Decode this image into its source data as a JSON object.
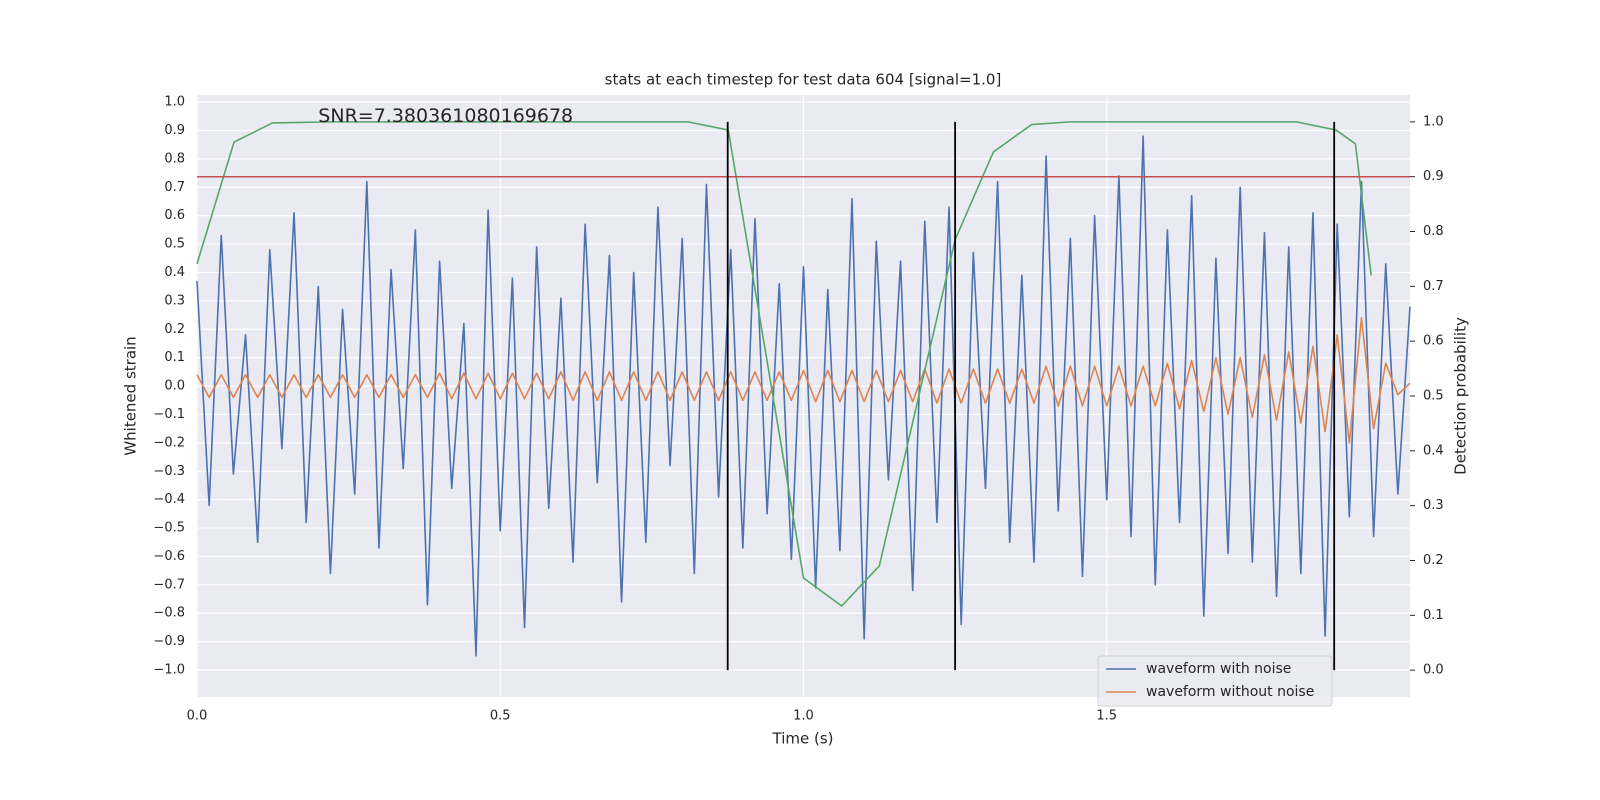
{
  "chart_data": {
    "type": "line",
    "title": "stats at each timestep for test data 604 [signal=1.0]",
    "xlabel": "Time (s)",
    "ylabel": "Whitened strain",
    "y2label": "Detection probability",
    "annotation": {
      "text": "SNR=7.380361080169678",
      "x": 0.2,
      "y": 0.95
    },
    "xlim": [
      0,
      2.0
    ],
    "ylim": [
      -1.095,
      1.025
    ],
    "y2lim": [
      -0.049,
      1.049
    ],
    "xticks": [
      {
        "value": 0,
        "label": "0.0"
      },
      0.5,
      {
        "value": 1,
        "label": "1.0"
      },
      1.5
    ],
    "yticks": [
      {
        "value": -1,
        "label": "−1.0"
      },
      {
        "value": -0.9,
        "label": "−0.9"
      },
      {
        "value": -0.8,
        "label": "−0.8"
      },
      {
        "value": -0.7,
        "label": "−0.7"
      },
      {
        "value": -0.6,
        "label": "−0.6"
      },
      {
        "value": -0.5,
        "label": "−0.5"
      },
      {
        "value": -0.4,
        "label": "−0.4"
      },
      {
        "value": -0.3,
        "label": "−0.3"
      },
      {
        "value": -0.2,
        "label": "−0.2"
      },
      {
        "value": -0.1,
        "label": "−0.1"
      },
      {
        "value": 0,
        "label": "0.0"
      },
      0.1,
      0.2,
      0.3,
      0.4,
      0.5,
      0.6,
      0.7,
      0.8,
      0.9,
      {
        "value": 1,
        "label": "1.0"
      }
    ],
    "y2ticks": [
      {
        "value": 0,
        "label": "0.0"
      },
      0.1,
      0.2,
      0.3,
      0.4,
      0.5,
      0.6,
      0.7,
      0.8,
      0.9,
      {
        "value": 1,
        "label": "1.0"
      }
    ],
    "grid": true,
    "legend": "lower right",
    "x": [
      0,
      0.02,
      0.04,
      0.06,
      0.08,
      0.1,
      0.12,
      0.14,
      0.16,
      0.18,
      0.2,
      0.22,
      0.24,
      0.26,
      0.28,
      0.3,
      0.32,
      0.34,
      0.36,
      0.38,
      0.4,
      0.42,
      0.44,
      0.46,
      0.48,
      0.5,
      0.52,
      0.54,
      0.56,
      0.58,
      0.6,
      0.62,
      0.64,
      0.66,
      0.68,
      0.7,
      0.72,
      0.74,
      0.76,
      0.78,
      0.8,
      0.82,
      0.84,
      0.86,
      0.88,
      0.9,
      0.92,
      0.94,
      0.96,
      0.98,
      1.0,
      1.02,
      1.04,
      1.06,
      1.08,
      1.1,
      1.12,
      1.14,
      1.16,
      1.18,
      1.2,
      1.22,
      1.24,
      1.26,
      1.28,
      1.3,
      1.32,
      1.34,
      1.36,
      1.38,
      1.4,
      1.42,
      1.44,
      1.46,
      1.48,
      1.5,
      1.52,
      1.54,
      1.56,
      1.58,
      1.6,
      1.62,
      1.64,
      1.66,
      1.68,
      1.7,
      1.72,
      1.74,
      1.76,
      1.78,
      1.8,
      1.82,
      1.84,
      1.86,
      1.88,
      1.9,
      1.92,
      1.94,
      1.96,
      1.98,
      2.0
    ],
    "series": [
      {
        "name": "waveform with noise",
        "color": "#4c72b0",
        "values": [
          0.37,
          -0.42,
          0.53,
          -0.31,
          0.18,
          -0.55,
          0.48,
          -0.22,
          0.61,
          -0.48,
          0.35,
          -0.66,
          0.27,
          -0.38,
          0.72,
          -0.57,
          0.41,
          -0.29,
          0.55,
          -0.77,
          0.44,
          -0.36,
          0.22,
          -0.95,
          0.62,
          -0.51,
          0.38,
          -0.85,
          0.49,
          -0.43,
          0.31,
          -0.62,
          0.57,
          -0.34,
          0.46,
          -0.76,
          0.4,
          -0.55,
          0.63,
          -0.28,
          0.52,
          -0.66,
          0.71,
          -0.39,
          0.48,
          -0.57,
          0.59,
          -0.45,
          0.36,
          -0.61,
          0.42,
          -0.71,
          0.34,
          -0.58,
          0.66,
          -0.89,
          0.51,
          -0.33,
          0.44,
          -0.72,
          0.58,
          -0.48,
          0.63,
          -0.84,
          0.47,
          -0.36,
          0.72,
          -0.55,
          0.39,
          -0.62,
          0.81,
          -0.44,
          0.52,
          -0.67,
          0.6,
          -0.4,
          0.74,
          -0.53,
          0.88,
          -0.7,
          0.55,
          -0.48,
          0.67,
          -0.81,
          0.45,
          -0.59,
          0.7,
          -0.62,
          0.54,
          -0.74,
          0.49,
          -0.66,
          0.61,
          -0.88,
          0.57,
          -0.46,
          0.72,
          -0.53,
          0.43,
          -0.38,
          0.28
        ]
      },
      {
        "name": "waveform without noise",
        "color": "#dd8452",
        "values": [
          0.04,
          -0.04,
          0.04,
          -0.04,
          0.04,
          -0.04,
          0.04,
          -0.04,
          0.04,
          -0.04,
          0.04,
          -0.04,
          0.04,
          -0.04,
          0.04,
          -0.04,
          0.04,
          -0.04,
          0.04,
          -0.04,
          0.045,
          -0.045,
          0.045,
          -0.045,
          0.045,
          -0.045,
          0.045,
          -0.045,
          0.045,
          -0.045,
          0.05,
          -0.05,
          0.05,
          -0.05,
          0.05,
          -0.05,
          0.05,
          -0.05,
          0.05,
          -0.05,
          0.05,
          -0.05,
          0.05,
          -0.05,
          0.05,
          -0.05,
          0.05,
          -0.05,
          0.05,
          -0.05,
          0.055,
          -0.055,
          0.055,
          -0.055,
          0.055,
          -0.055,
          0.055,
          -0.055,
          0.055,
          -0.055,
          0.06,
          -0.06,
          0.06,
          -0.06,
          0.06,
          -0.06,
          0.06,
          -0.06,
          0.06,
          -0.06,
          0.07,
          -0.07,
          0.07,
          -0.07,
          0.07,
          -0.07,
          0.07,
          -0.07,
          0.07,
          -0.07,
          0.08,
          -0.08,
          0.09,
          -0.09,
          0.1,
          -0.1,
          0.1,
          -0.11,
          0.11,
          -0.12,
          0.12,
          -0.13,
          0.14,
          -0.16,
          0.18,
          -0.2,
          0.24,
          -0.15,
          0.08,
          -0.03,
          0.01
        ]
      },
      {
        "color": "#55a868",
        "axis": "y2",
        "x": [
          0,
          0.061,
          0.124,
          0.22,
          0.81,
          0.876,
          1.0,
          1.063,
          1.125,
          1.25,
          1.313,
          1.376,
          1.439,
          1.813,
          1.878,
          1.91,
          1.936
        ],
        "values": [
          0.741,
          0.963,
          0.998,
          1.0,
          1.0,
          0.985,
          0.168,
          0.117,
          0.19,
          0.785,
          0.945,
          0.995,
          1.0,
          1.0,
          0.985,
          0.96,
          0.72
        ]
      }
    ],
    "threshold": {
      "value": 0.9,
      "axis": "y2",
      "color": "#c44e52"
    },
    "vlines": {
      "x": [
        0.875,
        1.25,
        1.875
      ],
      "range": [
        0,
        1
      ],
      "axis": "y2",
      "color": "#000000"
    }
  }
}
